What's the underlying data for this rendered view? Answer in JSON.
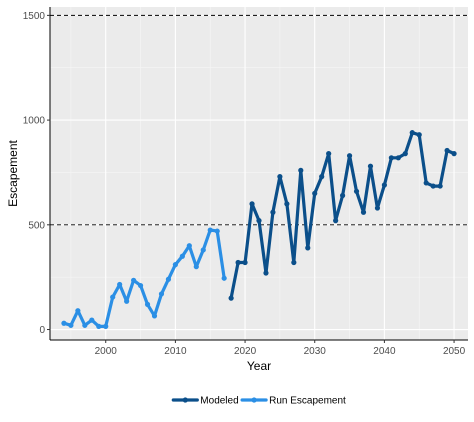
{
  "chart_data": {
    "type": "line",
    "xlabel": "Year",
    "ylabel": "Escapement",
    "xlim": [
      1992,
      2052
    ],
    "ylim": [
      -50,
      1540
    ],
    "x_ticks": [
      2000,
      2010,
      2020,
      2030,
      2040,
      2050
    ],
    "y_ticks": [
      0,
      500,
      1000,
      1500
    ],
    "grid": true,
    "reference_lines": [
      500,
      1500
    ],
    "legend_position": "bottom",
    "series": [
      {
        "name": "Modeled",
        "color": "#0b4f8a",
        "x": [
          2018,
          2019,
          2020,
          2021,
          2022,
          2023,
          2024,
          2025,
          2026,
          2027,
          2028,
          2029,
          2030,
          2031,
          2032,
          2033,
          2034,
          2035,
          2036,
          2037,
          2038,
          2039,
          2040,
          2041,
          2042,
          2043,
          2044,
          2045,
          2046,
          2047,
          2048,
          2049,
          2050
        ],
        "y": [
          150,
          320,
          320,
          600,
          520,
          270,
          560,
          730,
          600,
          320,
          760,
          390,
          650,
          730,
          840,
          520,
          640,
          830,
          660,
          560,
          780,
          580,
          690,
          820,
          820,
          840,
          940,
          930,
          700,
          685,
          685,
          855,
          840
        ]
      },
      {
        "name": "Run Escapement",
        "color": "#2b8fe5",
        "x": [
          1994,
          1995,
          1996,
          1997,
          1998,
          1999,
          2000,
          2001,
          2002,
          2003,
          2004,
          2005,
          2006,
          2007,
          2008,
          2009,
          2010,
          2011,
          2012,
          2013,
          2014,
          2015,
          2016,
          2017
        ],
        "y": [
          30,
          20,
          90,
          20,
          45,
          15,
          15,
          155,
          215,
          135,
          235,
          210,
          120,
          65,
          170,
          240,
          310,
          350,
          400,
          300,
          380,
          475,
          470,
          245
        ]
      }
    ]
  }
}
